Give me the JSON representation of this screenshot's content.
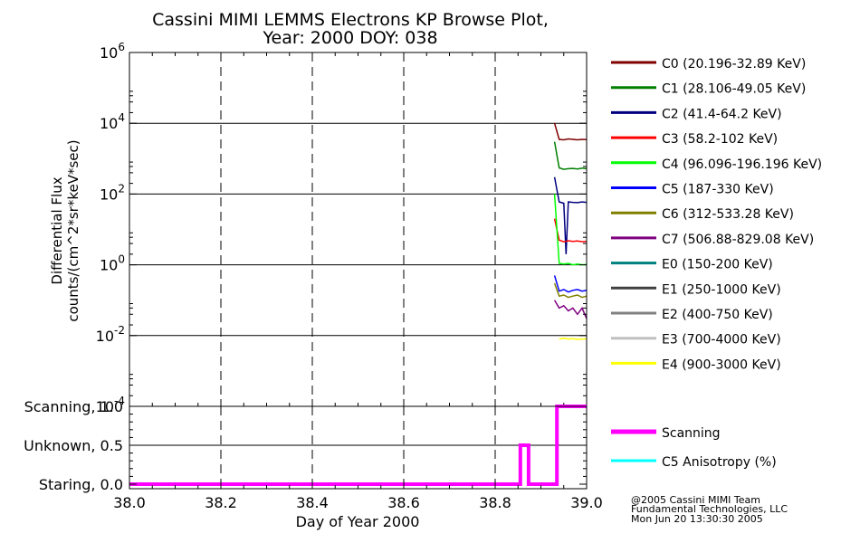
{
  "chart_data": [
    {
      "type": "line",
      "title": "Cassini MIMI LEMMS Electrons KP Browse Plot,",
      "subtitle": "Year: 2000 DOY: 038",
      "ylabel_line1": "Differential Flux",
      "ylabel_line2": "counts/(cm^2*sr*keV*sec)",
      "y_scale": "log",
      "ylim": [
        0.0001,
        1000000
      ],
      "xlim": [
        38.0,
        39.0
      ],
      "grid": true,
      "legend_position": "right",
      "y_ticks": [
        {
          "value": 0.0001,
          "base": "10",
          "exp": "-4"
        },
        {
          "value": 0.01,
          "base": "10",
          "exp": "-2"
        },
        {
          "value": 1,
          "base": "10",
          "exp": "0"
        },
        {
          "value": 100,
          "base": "10",
          "exp": "2"
        },
        {
          "value": 10000,
          "base": "10",
          "exp": "4"
        },
        {
          "value": 1000000,
          "base": "10",
          "exp": "6"
        }
      ],
      "series": [
        {
          "name": "C0 (20.196-32.89 KeV)",
          "color": "#800000",
          "x": [
            38.93,
            38.94,
            38.95,
            38.96,
            38.97,
            38.98,
            38.99,
            39.0
          ],
          "values": [
            10000,
            3500,
            3400,
            3600,
            3500,
            3400,
            3500,
            3450
          ]
        },
        {
          "name": "C1 (28.106-49.05 KeV)",
          "color": "#007f00",
          "x": [
            38.93,
            38.94,
            38.95,
            38.96,
            38.97,
            38.98,
            38.99,
            39.0
          ],
          "values": [
            3000,
            550,
            500,
            520,
            530,
            510,
            540,
            520
          ]
        },
        {
          "name": "C2 (41.4-64.2 KeV)",
          "color": "#00007f",
          "x": [
            38.93,
            38.94,
            38.95,
            38.955,
            38.96,
            38.97,
            38.98,
            38.99,
            39.0
          ],
          "values": [
            300,
            60,
            55,
            2,
            60,
            58,
            57,
            60,
            58
          ]
        },
        {
          "name": "C3 (58.2-102 KeV)",
          "color": "#ff0000",
          "x": [
            38.93,
            38.94,
            38.95,
            38.96,
            38.97,
            38.98,
            38.99,
            39.0
          ],
          "values": [
            20,
            5,
            4.5,
            4.8,
            4.6,
            4.7,
            4.5,
            4.6
          ]
        },
        {
          "name": "C4 (96.096-196.196 KeV)",
          "color": "#00ff00",
          "x": [
            38.93,
            38.94,
            38.95,
            38.96,
            38.97,
            38.98,
            38.99,
            39.0
          ],
          "values": [
            100,
            1.1,
            1.05,
            1.1,
            1.0,
            1.05,
            1.0,
            1.02
          ]
        },
        {
          "name": "C5 (187-330 KeV)",
          "color": "#0000ff",
          "x": [
            38.93,
            38.94,
            38.95,
            38.96,
            38.97,
            38.98,
            38.99,
            39.0
          ],
          "values": [
            0.5,
            0.18,
            0.2,
            0.17,
            0.19,
            0.2,
            0.18,
            0.19
          ]
        },
        {
          "name": "C6 (312-533.28 KeV)",
          "color": "#808000",
          "x": [
            38.93,
            38.94,
            38.95,
            38.96,
            38.97,
            38.98,
            38.99,
            39.0
          ],
          "values": [
            0.3,
            0.13,
            0.14,
            0.12,
            0.13,
            0.14,
            0.12,
            0.13
          ]
        },
        {
          "name": "C7 (506.88-829.08 KeV)",
          "color": "#800080",
          "x": [
            38.93,
            38.94,
            38.95,
            38.96,
            38.97,
            38.98,
            38.99,
            39.0
          ],
          "values": [
            0.1,
            0.06,
            0.07,
            0.05,
            0.06,
            0.04,
            0.06,
            0.03
          ]
        },
        {
          "name": "E0 (150-200 KeV)",
          "color": "#008080",
          "x": [],
          "values": []
        },
        {
          "name": "E1 (250-1000 KeV)",
          "color": "#404040",
          "x": [],
          "values": []
        },
        {
          "name": "E2 (400-750 KeV)",
          "color": "#808080",
          "x": [],
          "values": []
        },
        {
          "name": "E3 (700-4000 KeV)",
          "color": "#c0c0c0",
          "x": [],
          "values": []
        },
        {
          "name": "E4 (900-3000 KeV)",
          "color": "#ffff00",
          "x": [
            38.94,
            38.95,
            38.96,
            38.97,
            38.98,
            38.99,
            39.0
          ],
          "values": [
            0.008,
            0.0085,
            0.008,
            0.0082,
            0.0078,
            0.008,
            0.0081
          ]
        }
      ]
    },
    {
      "type": "line",
      "xlabel": "Day of Year 2000",
      "xlim": [
        38.0,
        39.0
      ],
      "ylim": [
        0,
        1.0
      ],
      "x_tick_labels": [
        "38.0",
        "38.2",
        "38.4",
        "38.6",
        "38.8",
        "39.0"
      ],
      "x_ticks": [
        38.0,
        38.2,
        38.4,
        38.6,
        38.8,
        39.0
      ],
      "y_tick_labels": [
        "Staring, 0.0",
        "Unknown, 0.5",
        "Scanning, 1.0"
      ],
      "y_ticks": [
        0.0,
        0.5,
        1.0
      ],
      "grid": true,
      "legend_position": "right",
      "series": [
        {
          "name": "Scanning",
          "color": "#ff00ff",
          "x": [
            38.0,
            38.855,
            38.855,
            38.873,
            38.873,
            38.935,
            38.935,
            39.0
          ],
          "values": [
            0,
            0,
            0.5,
            0.5,
            0,
            0,
            1,
            1
          ]
        },
        {
          "name": "C5 Anisotropy (%)",
          "color": "#00ffff",
          "x": [],
          "values": []
        }
      ]
    }
  ],
  "credits": [
    "@2005 Cassini MIMI Team",
    "Fundamental Technologies, LLC",
    "Mon Jun 20 13:30:30 2005"
  ]
}
